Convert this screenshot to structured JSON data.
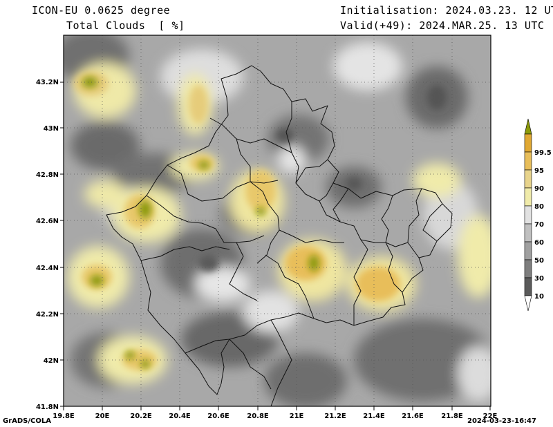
{
  "header": {
    "model": "ICON-EU 0.0625 degree",
    "variable": "Total Clouds  [ %]",
    "init": "Initialisation: 2024.03.23. 12 UTC",
    "valid": "Valid(+49): 2024.MAR.25. 13 UTC"
  },
  "axes": {
    "x_ticks": [
      "19.8E",
      "20E",
      "20.2E",
      "20.4E",
      "20.6E",
      "20.8E",
      "21E",
      "21.2E",
      "21.4E",
      "21.6E",
      "21.8E",
      "22E"
    ],
    "y_ticks": [
      "43.2N",
      "43N",
      "42.8N",
      "42.6N",
      "42.4N",
      "42.2N",
      "42N",
      "41.8N"
    ]
  },
  "colorbar": {
    "levels": [
      "10",
      "30",
      "50",
      "60",
      "70",
      "80",
      "90",
      "95",
      "99.5"
    ],
    "colors": [
      "#ffffff",
      "#5a5a5a",
      "#7e7e7e",
      "#a0a0a0",
      "#c0c0c0",
      "#e2e2e2",
      "#f0ebaa",
      "#e8d48c",
      "#e8be5a",
      "#e0a832",
      "#8c9a0a"
    ]
  },
  "footer": {
    "left": "GrADS/COLA",
    "right": "2024-03-23-16:47"
  }
}
